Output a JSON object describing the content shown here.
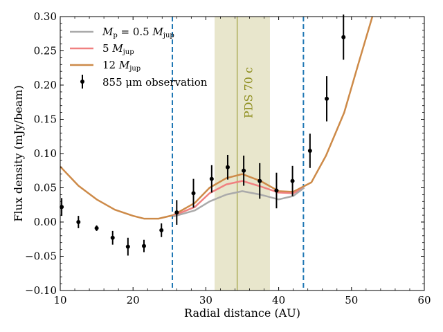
{
  "chart_data": {
    "type": "line",
    "xlabel": "Radial distance (AU)",
    "ylabel": "Flux density (mJy/beam)",
    "xlim": [
      10,
      60
    ],
    "ylim": [
      -0.1,
      0.3
    ],
    "xticks": [
      10,
      20,
      30,
      40,
      50,
      60
    ],
    "xtick_labels": [
      "10",
      "20",
      "30",
      "40",
      "50",
      "60"
    ],
    "yticks": [
      -0.1,
      -0.05,
      0.0,
      0.05,
      0.1,
      0.15,
      0.2,
      0.25,
      0.3
    ],
    "ytick_labels": [
      "−0.10",
      "−0.05",
      "0.00",
      "0.05",
      "0.10",
      "0.15",
      "0.20",
      "0.25",
      "0.30"
    ],
    "series": [
      {
        "name": "M_p = 0.5 M_jup",
        "legend_label": "Mp = 0.5 Mjup",
        "color": "#aaaaaa",
        "x": [
          25.5,
          28.5,
          30.5,
          32.8,
          35,
          37.5,
          40,
          42,
          43.5
        ],
        "y": [
          0.008,
          0.017,
          0.03,
          0.04,
          0.045,
          0.04,
          0.033,
          0.038,
          0.05
        ]
      },
      {
        "name": "5 M_jup",
        "legend_label": "5 Mjup",
        "color": "#f08080",
        "x": [
          25.5,
          28.5,
          30.5,
          32.8,
          35,
          37.5,
          40,
          42,
          43.5
        ],
        "y": [
          0.009,
          0.022,
          0.042,
          0.055,
          0.06,
          0.052,
          0.043,
          0.042,
          0.05
        ]
      },
      {
        "name": "12 M_jup",
        "legend_label": "12 Mjup",
        "color": "#cd8a48",
        "x": [
          10,
          12.5,
          15,
          17.5,
          20,
          21.5,
          23.5,
          25.5,
          28.5,
          30.5,
          32.8,
          35,
          37.5,
          40,
          42,
          44.5,
          46.5,
          49,
          51,
          53
        ],
        "y": [
          0.081,
          0.053,
          0.033,
          0.018,
          0.009,
          0.005,
          0.005,
          0.01,
          0.028,
          0.05,
          0.064,
          0.07,
          0.06,
          0.045,
          0.044,
          0.058,
          0.097,
          0.16,
          0.233,
          0.305
        ]
      }
    ],
    "observations": {
      "name": "855 μm observation",
      "legend_label": "855 μm observation",
      "color": "#000000",
      "x": [
        10.2,
        12.5,
        15,
        17.2,
        19.3,
        21.5,
        23.9,
        26,
        28.3,
        30.8,
        33,
        35.2,
        37.4,
        39.7,
        41.9,
        44.3,
        46.6,
        48.9
      ],
      "y": [
        0.022,
        0.0,
        -0.009,
        -0.023,
        -0.036,
        -0.035,
        -0.012,
        0.014,
        0.042,
        0.063,
        0.08,
        0.075,
        0.06,
        0.046,
        0.06,
        0.104,
        0.18,
        0.27
      ],
      "err": [
        0.013,
        0.009,
        0.004,
        0.01,
        0.013,
        0.009,
        0.01,
        0.018,
        0.021,
        0.02,
        0.018,
        0.022,
        0.026,
        0.026,
        0.022,
        0.025,
        0.033,
        0.033
      ]
    },
    "vertical_lines": [
      {
        "x": 25.4,
        "color": "#1f77b4",
        "style": "dashed"
      },
      {
        "x": 43.4,
        "color": "#1f77b4",
        "style": "dashed"
      }
    ],
    "shaded_region": {
      "x_from": 31.2,
      "x_to": 38.8,
      "color": "#e8e6cc"
    },
    "annotation": {
      "text": "PDS 70 c",
      "x": 34.3,
      "color": "#8c8c1a"
    },
    "legend_position": "top-left"
  }
}
